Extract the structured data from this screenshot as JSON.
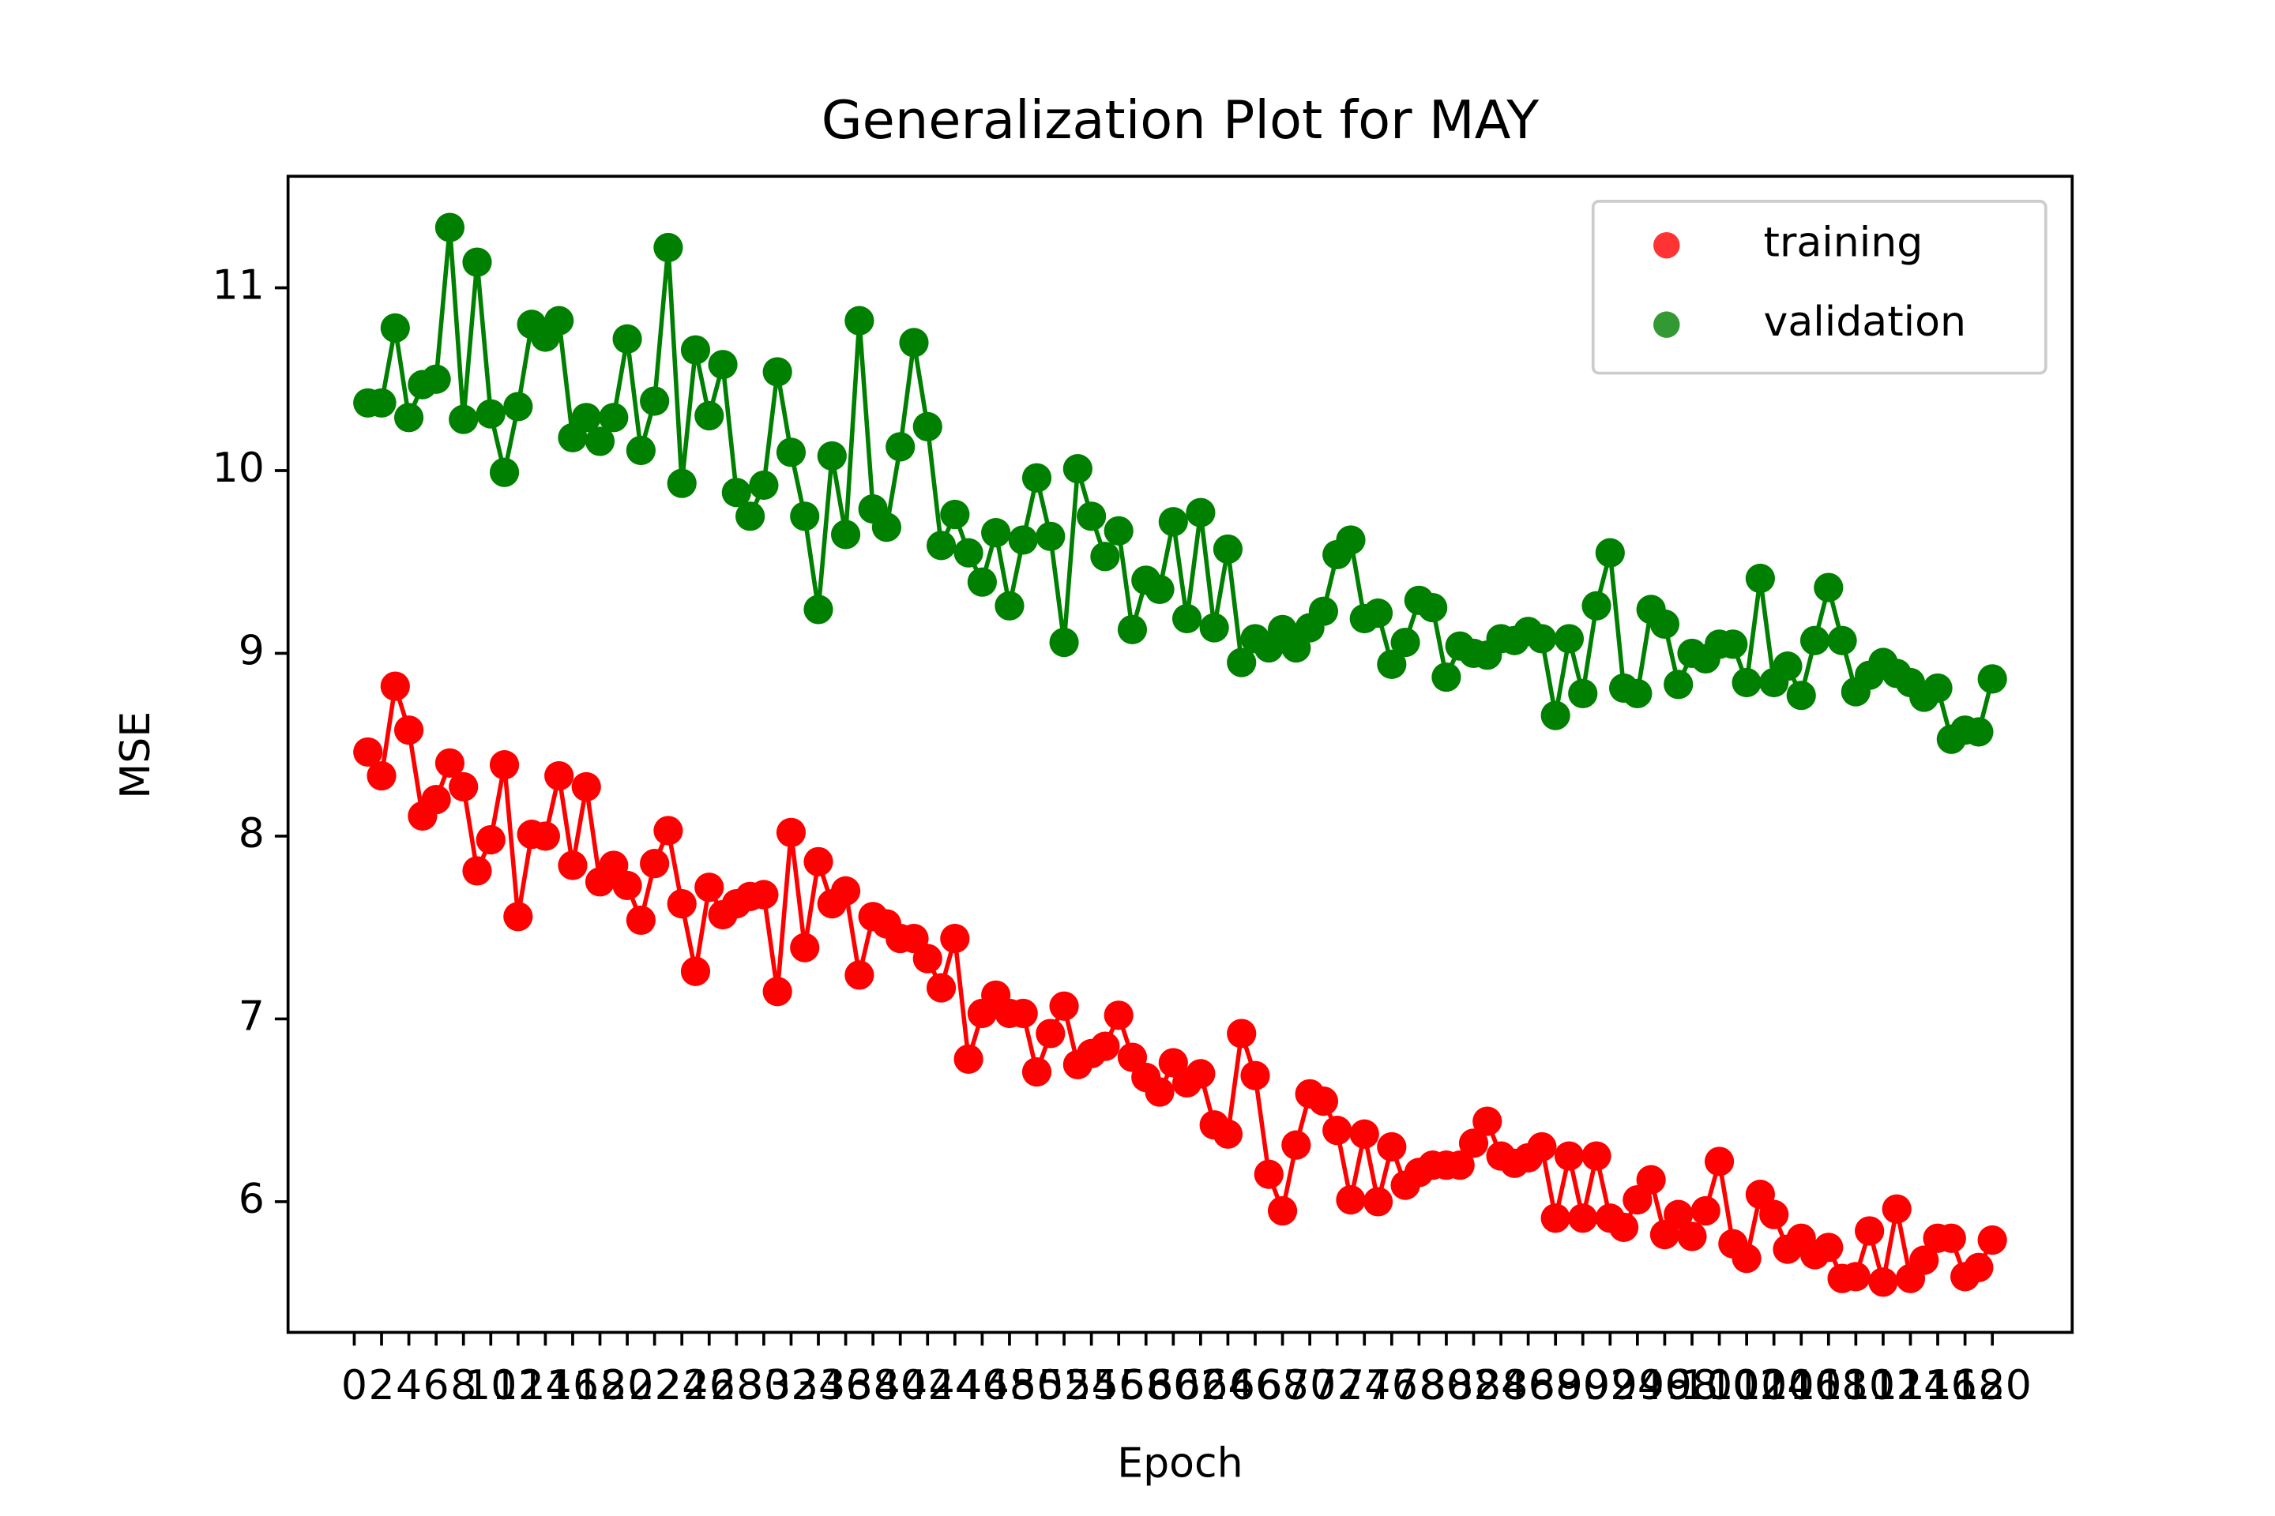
{
  "chart_data": {
    "type": "line",
    "title": "Generalization Plot for MAY",
    "xlabel": "Epoch",
    "ylabel": "MSE",
    "x": [
      1,
      2,
      3,
      4,
      5,
      6,
      7,
      8,
      9,
      10,
      11,
      12,
      13,
      14,
      15,
      16,
      17,
      18,
      19,
      20,
      21,
      22,
      23,
      24,
      25,
      26,
      27,
      28,
      29,
      30,
      31,
      32,
      33,
      34,
      35,
      36,
      37,
      38,
      39,
      40,
      41,
      42,
      43,
      44,
      45,
      46,
      47,
      48,
      49,
      50,
      51,
      52,
      53,
      54,
      55,
      56,
      57,
      58,
      59,
      60,
      61,
      62,
      63,
      64,
      65,
      66,
      67,
      68,
      69,
      70,
      71,
      72,
      73,
      74,
      75,
      76,
      77,
      78,
      79,
      80,
      81,
      82,
      83,
      84,
      85,
      86,
      87,
      88,
      89,
      90,
      91,
      92,
      93,
      94,
      95,
      96,
      97,
      98,
      99,
      100,
      101,
      102,
      103,
      104,
      105,
      106,
      107,
      108,
      109,
      110,
      111,
      112,
      113,
      114,
      115,
      116,
      117,
      118,
      119,
      120
    ],
    "series": [
      {
        "name": "training",
        "color": "#ff0000",
        "values": [
          8.46,
          8.33,
          8.82,
          8.58,
          8.11,
          8.2,
          8.4,
          8.27,
          7.81,
          7.98,
          8.39,
          7.56,
          8.01,
          8.0,
          8.33,
          7.84,
          8.27,
          7.75,
          7.84,
          7.73,
          7.54,
          7.85,
          8.03,
          7.63,
          7.26,
          7.72,
          7.57,
          7.63,
          7.67,
          7.68,
          7.15,
          8.02,
          7.39,
          7.86,
          7.63,
          7.7,
          7.24,
          7.56,
          7.52,
          7.44,
          7.44,
          7.33,
          7.17,
          7.44,
          6.78,
          7.03,
          7.13,
          7.03,
          7.03,
          6.71,
          6.92,
          7.07,
          6.75,
          6.81,
          6.85,
          7.02,
          6.79,
          6.68,
          6.6,
          6.76,
          6.65,
          6.7,
          6.42,
          6.37,
          6.92,
          6.69,
          6.15,
          5.95,
          6.31,
          6.59,
          6.55,
          6.39,
          6.01,
          6.37,
          6.0,
          6.3,
          6.09,
          6.16,
          6.2,
          6.2,
          6.2,
          6.32,
          6.44,
          6.25,
          6.21,
          6.24,
          6.3,
          5.91,
          6.25,
          5.91,
          6.25,
          5.91,
          5.86,
          6.01,
          6.12,
          5.82,
          5.93,
          5.81,
          5.95,
          6.22,
          5.77,
          5.69,
          6.04,
          5.93,
          5.74,
          5.8,
          5.71,
          5.75,
          5.58,
          5.59,
          5.84,
          5.56,
          5.96,
          5.58,
          5.68,
          5.8,
          5.8,
          5.59,
          5.64,
          5.79
        ]
      },
      {
        "name": "validation",
        "color": "#008000",
        "values": [
          10.37,
          10.37,
          10.78,
          10.29,
          10.47,
          10.5,
          11.33,
          10.28,
          11.14,
          10.31,
          9.99,
          10.35,
          10.8,
          10.73,
          10.82,
          10.18,
          10.29,
          10.16,
          10.29,
          10.72,
          10.11,
          10.38,
          11.22,
          9.93,
          10.66,
          10.3,
          10.58,
          9.88,
          9.75,
          9.92,
          10.54,
          10.1,
          9.75,
          9.24,
          10.08,
          9.65,
          10.82,
          9.79,
          9.69,
          10.13,
          10.7,
          10.24,
          9.59,
          9.76,
          9.55,
          9.39,
          9.66,
          9.26,
          9.62,
          9.96,
          9.64,
          9.06,
          10.01,
          9.75,
          9.53,
          9.67,
          9.13,
          9.4,
          9.35,
          9.72,
          9.19,
          9.77,
          9.14,
          9.57,
          8.95,
          9.08,
          9.03,
          9.13,
          9.03,
          9.14,
          9.23,
          9.54,
          9.62,
          9.19,
          9.22,
          8.94,
          9.06,
          9.29,
          9.25,
          8.87,
          9.04,
          9.0,
          8.99,
          9.08,
          9.07,
          9.12,
          9.08,
          8.66,
          9.08,
          8.78,
          9.26,
          9.55,
          8.81,
          8.78,
          9.24,
          9.16,
          8.83,
          9.0,
          8.97,
          9.05,
          9.05,
          8.84,
          9.41,
          8.84,
          8.93,
          8.77,
          9.07,
          9.36,
          9.07,
          8.79,
          8.88,
          8.95,
          8.89,
          8.84,
          8.76,
          8.81,
          8.53,
          8.58,
          8.57,
          8.86
        ]
      }
    ],
    "xlim": [
      -4.85,
      125.85
    ],
    "ylim": [
      5.285,
      11.61
    ],
    "xticks": [
      0,
      2,
      4,
      6,
      8,
      10,
      12,
      14,
      16,
      18,
      20,
      22,
      24,
      26,
      28,
      30,
      32,
      34,
      36,
      38,
      40,
      42,
      44,
      46,
      48,
      50,
      52,
      54,
      56,
      58,
      60,
      62,
      64,
      66,
      68,
      70,
      72,
      74,
      76,
      78,
      80,
      82,
      84,
      86,
      88,
      90,
      92,
      94,
      96,
      98,
      100,
      102,
      104,
      106,
      108,
      110,
      112,
      114,
      116,
      118,
      120
    ],
    "yticks": [
      6,
      7,
      8,
      9,
      10,
      11
    ],
    "legend": "upper right"
  }
}
